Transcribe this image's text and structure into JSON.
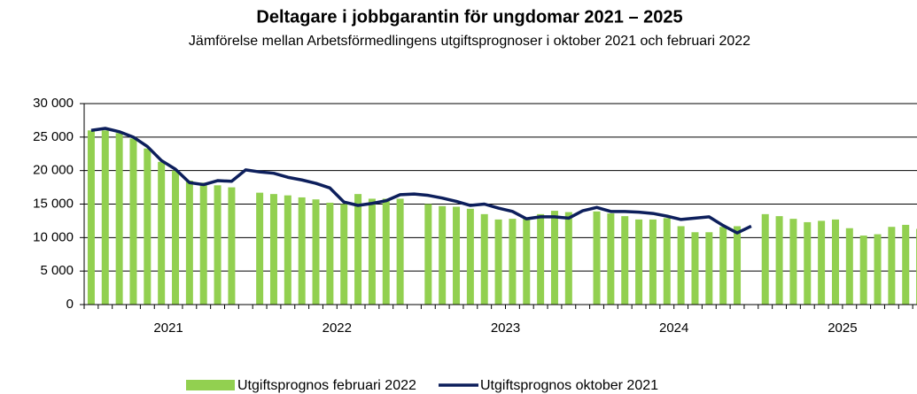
{
  "chart_data": {
    "type": "bar_line",
    "title": "Deltagare i jobbgarantin för ungdomar 2021 – 2025",
    "subtitle": "Jämförelse mellan Arbetsförmedlingens utgiftsprognoser i oktober 2021 och februari 2022",
    "groups": [
      "2021",
      "2022",
      "2023",
      "2024",
      "2025"
    ],
    "months_per_group": 12,
    "series": [
      {
        "name": "Utgiftsprognos februari 2022",
        "type": "bar",
        "color": "#92d050",
        "values": [
          26000,
          26000,
          25600,
          24800,
          23300,
          21300,
          20000,
          18500,
          18200,
          17800,
          17500,
          null,
          16700,
          16500,
          16300,
          16000,
          15700,
          15200,
          15000,
          16500,
          15800,
          15800,
          15800,
          null,
          15000,
          14700,
          14600,
          14300,
          13500,
          12700,
          12800,
          12900,
          13500,
          14000,
          13800,
          null,
          13900,
          13600,
          13200,
          12700,
          12700,
          12900,
          11700,
          10800,
          10800,
          11600,
          11700,
          null,
          13500,
          13200,
          12800,
          12300,
          12500,
          12700,
          11400,
          10300,
          10500,
          11600,
          11900,
          11300
        ]
      },
      {
        "name": "Utgiftsprognos oktober 2021",
        "type": "line",
        "color": "#0d1f5c",
        "values": [
          26000,
          26300,
          25800,
          25000,
          23600,
          21500,
          20200,
          18200,
          17900,
          18500,
          18400,
          20100,
          19800,
          19600,
          19000,
          18600,
          18100,
          17400,
          15300,
          14800,
          15100,
          15500,
          16400,
          16500,
          16300,
          15900,
          15400,
          14800,
          15000,
          14400,
          13900,
          12800,
          13100,
          13100,
          12900,
          14000,
          14500,
          13900,
          13900,
          13800,
          13600,
          13200,
          12700,
          12900,
          13100,
          11800,
          10700,
          11700
        ]
      }
    ],
    "ylim": [
      0,
      30000
    ],
    "yticks": [
      0,
      {
        "value": 5000,
        "label": "5 000"
      },
      {
        "value": 10000,
        "label": "10 000"
      },
      {
        "value": 15000,
        "label": "15 000"
      },
      {
        "value": 20000,
        "label": "20 000"
      },
      {
        "value": 25000,
        "label": "25 000"
      },
      {
        "value": 30000,
        "label": "30 000"
      }
    ],
    "grid": true
  }
}
